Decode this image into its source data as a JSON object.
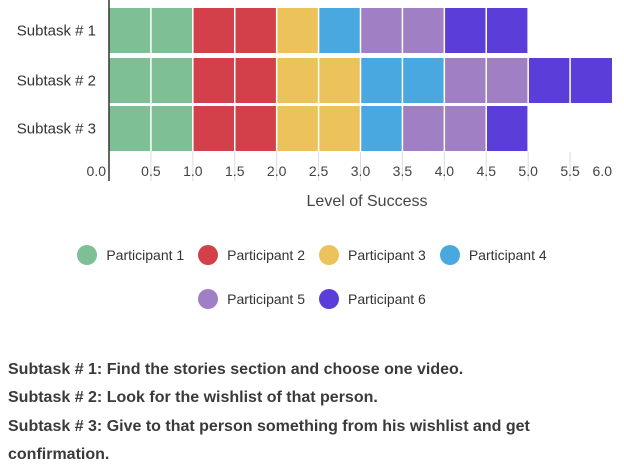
{
  "chart_data": {
    "type": "bar",
    "orientation": "horizontal",
    "stacked": true,
    "categories": [
      "Subtask # 1",
      "Subtask # 2",
      "Subtask # 3"
    ],
    "xlabel": "Level of Success",
    "xlim": [
      0,
      6.0
    ],
    "xticks": [
      "0.0",
      "0.5",
      "1.0",
      "1.5",
      "2.0",
      "2.5",
      "3.0",
      "3.5",
      "4.0",
      "4.5",
      "5.0",
      "5.5",
      "6.0"
    ],
    "legend_position": "bottom",
    "series": [
      {
        "name": "Participant 1",
        "color": "#7fbf96",
        "values": [
          1.0,
          1.0,
          1.0
        ]
      },
      {
        "name": "Participant 2",
        "color": "#d4404a",
        "values": [
          1.0,
          1.0,
          1.0
        ]
      },
      {
        "name": "Participant 3",
        "color": "#ecc35a",
        "values": [
          0.5,
          1.0,
          1.0
        ]
      },
      {
        "name": "Participant 4",
        "color": "#4aa8e0",
        "values": [
          0.5,
          1.0,
          0.5
        ]
      },
      {
        "name": "Participant 5",
        "color": "#a07fc4",
        "values": [
          1.0,
          1.0,
          1.0
        ]
      },
      {
        "name": "Participant 6",
        "color": "#5b3ed9",
        "values": [
          1.0,
          1.0,
          0.5
        ]
      }
    ]
  },
  "notes": [
    "Subtask # 1: Find the stories section and choose one video.",
    "Subtask # 2: Look for the wishlist of that person.",
    "Subtask # 3: Give to that person something from his wishlist and get confirmation."
  ]
}
